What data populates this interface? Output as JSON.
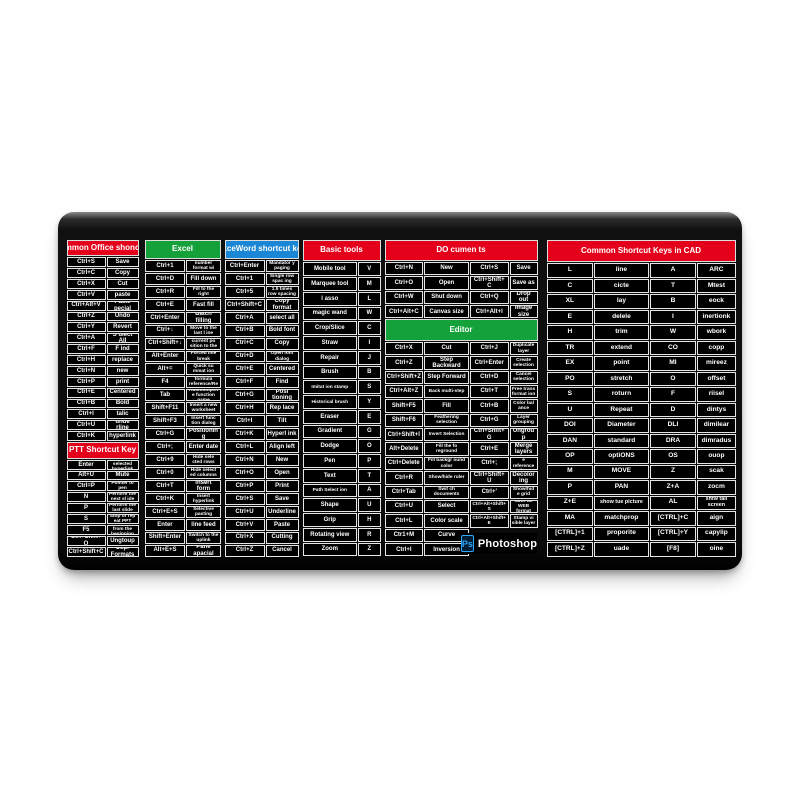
{
  "colors": {
    "red": "#e4001b",
    "green": "#14a139",
    "blue": "#1a87d6",
    "pad_surface": "#0a0a0a",
    "cell_border": "#e6e6e6",
    "text": "#ffffff",
    "ps_blue": "#31a8ff",
    "ps_bg": "#001d33"
  },
  "logo": {
    "icon_text": "Ps",
    "label": "Photoshop"
  },
  "pad": {
    "strips": [
      {
        "id": "office",
        "sections": [
          {
            "id": "office",
            "title": "Common Office shonculs",
            "color": "red",
            "layout": "kv",
            "rows": [
              [
                "Ctrl+S",
                "Save"
              ],
              [
                "Ctrl+C",
                "Copy"
              ],
              [
                "Ctrl+X",
                "Cut"
              ],
              [
                "Ctrl+V",
                "paste"
              ],
              [
                "Ctrl+Alt+V",
                "Paste pecial"
              ],
              [
                "Ctrl+Z",
                "Undo"
              ],
              [
                "Ctrl+Y",
                "Revert"
              ],
              [
                "Ctrl+A",
                "S ulect All"
              ],
              [
                "Ctrl+F",
                "F ind"
              ],
              [
                "Ctrl+H",
                "replace"
              ],
              [
                "Ctrl+N",
                "new"
              ],
              [
                "Ctrl+P",
                "print"
              ],
              [
                "Ctrl+E",
                "Centered"
              ],
              [
                "Ctrl+B",
                "Bold"
              ],
              [
                "Ctrl+I",
                "talic"
              ],
              [
                "Ctrl+U",
                "unde rline"
              ],
              [
                "Ctrl+K",
                "hyperlink"
              ]
            ]
          },
          {
            "id": "ppt",
            "title": "PTT Shortcut Key",
            "color": "red",
            "layout": "kv",
            "rows": [
              [
                "Enter",
                "Open selected hyperlink"
              ],
              [
                "Alt+U",
                "Mute"
              ],
              [
                "Ctrl=P",
                "Pointer to pen"
              ],
              [
                "N",
                "Perform the next sl ide"
              ],
              [
                "P",
                "Perform the last slide"
              ],
              [
                "S",
                "Stop or rep eat PPT"
              ],
              [
                "F5",
                "Run PPT from the beginning"
              ],
              [
                "Ctrl+Shift+Q",
                "Ungtoup"
              ],
              [
                "Ctrl+Shift+C",
                "Copr Formats"
              ]
            ]
          }
        ]
      },
      {
        "id": "excel",
        "sections": [
          {
            "id": "excel",
            "title": "Excel",
            "color": "green",
            "layout": "kv",
            "rows": [
              [
                "Ctrl+1",
                "Open the number format wi ndow"
              ],
              [
                "Ctrl+D",
                "Fill down"
              ],
              [
                "Ctrl+R",
                "Fill to the right"
              ],
              [
                "Ctrl+E",
                "Fast fill"
              ],
              [
                "Ctrl+Enter",
                "Batch filling"
              ],
              [
                "Ctrl+↓",
                "Move to the last l ine"
              ],
              [
                "Ctrl+Shift+↓",
                "Check the current po sition to the last l ine"
              ],
              [
                "Alt+Enter",
                "Forced line break"
              ],
              [
                "Alt+=",
                "Quick su mmat ion"
              ],
              [
                "F4",
                "Switch formula reference/Repeat"
              ],
              [
                "Tab",
                "Autocomplete function name"
              ],
              [
                "Shift+F11",
                "Insert a new worksheet"
              ],
              [
                "Shift+F3",
                "Insert func tion dialog"
              ],
              [
                "Ctrl+G",
                "Positioning"
              ],
              [
                "Ctrl+;",
                "Enter date"
              ],
              [
                "Ctrl+9",
                "Hide sele cted rows"
              ],
              [
                "Ctrl+0",
                "Hide select ed columns"
              ],
              [
                "Ctrl+T",
                "Insert form"
              ],
              [
                "Ctrl+K",
                "Insert hyperlink"
              ],
              [
                "Ctrl+E+S",
                "Selective pasting"
              ],
              [
                "Enter",
                "line feed"
              ],
              [
                "Shift+Enter",
                "Switch to the uplink"
              ],
              [
                "Alt+E+S",
                "Pane apacial"
              ]
            ]
          }
        ]
      },
      {
        "id": "word",
        "sections": [
          {
            "id": "word",
            "title": "ExceWord shortcut key",
            "color": "blue",
            "layout": "kv",
            "rows": [
              [
                "Ctrl+Enter",
                "Mandator y paging"
              ],
              [
                "Ctrl+1",
                "Single row spac ing"
              ],
              [
                "Ctrl+5",
                "1.5 times row spacing"
              ],
              [
                "Ctrl+Shift+C",
                "Copy format"
              ],
              [
                "Ctrl+A",
                "select all"
              ],
              [
                "Ctrl+B",
                "Bold font"
              ],
              [
                "Ctrl+C",
                "Copy"
              ],
              [
                "Ctrl+D",
                "Open font dialog"
              ],
              [
                "Ctrl+E",
                "Centered"
              ],
              [
                "Ctrl+F",
                "Find"
              ],
              [
                "Ctrl+G",
                "Posi tioning"
              ],
              [
                "Ctrl+H",
                "Rep lace"
              ],
              [
                "Ctrl+I",
                "Tilt"
              ],
              [
                "Ctrl+K",
                "Hyperl ink"
              ],
              [
                "Ctrl+L",
                "Align left"
              ],
              [
                "Ctrl+N",
                "New"
              ],
              [
                "Ctrl+O",
                "Open"
              ],
              [
                "Ctrl+P",
                "Print"
              ],
              [
                "Ctrl+S",
                "Save"
              ],
              [
                "Ctrl+U",
                "Underline"
              ],
              [
                "Ctrl+V",
                "Paste"
              ],
              [
                "Ctrl+X",
                "Cutting"
              ],
              [
                "Ctrl+Z",
                "Cancel"
              ]
            ]
          }
        ]
      },
      {
        "id": "basic",
        "sections": [
          {
            "id": "basic",
            "title": "Basic tools",
            "color": "red",
            "layout": "vk",
            "rows": [
              [
                "Mobile tool",
                "V"
              ],
              [
                "Marquee tool",
                "M"
              ],
              [
                "l asso",
                "L"
              ],
              [
                "magic wand",
                "W"
              ],
              [
                "Crop/Slice",
                "C"
              ],
              [
                "Straw",
                "I"
              ],
              [
                "Repair",
                "J"
              ],
              [
                "Brush",
                "B"
              ],
              [
                "Imitat ion stamp",
                "S"
              ],
              [
                "Historical brush",
                "Y"
              ],
              [
                "Eraser",
                "E"
              ],
              [
                "Gradient",
                "G"
              ],
              [
                "Dodge",
                "O"
              ],
              [
                "Pen",
                "P"
              ],
              [
                "Text",
                "T"
              ],
              [
                "Path Select ion",
                "A"
              ],
              [
                "Shape",
                "U"
              ],
              [
                "Grip",
                "H"
              ],
              [
                "Rotating view",
                "R"
              ],
              [
                "Zoom",
                "Z"
              ]
            ]
          }
        ]
      },
      {
        "id": "ps",
        "sections": [
          {
            "id": "documents",
            "title": "DO cumen ts",
            "color": "red",
            "layout": "kvkv",
            "rows": [
              [
                "Ctrl+N",
                "New",
                "Ctrl+S",
                "Save"
              ],
              [
                "Ctrl+O",
                "Open",
                "Ctrl+Shift+C",
                "Save as"
              ],
              [
                "Ctrl+W",
                "Shut down",
                "Ctrl+Q",
                "Drop out"
              ],
              [
                "Ctrl+Alt+C",
                "Canvas size",
                "Ctrl+Alt+I",
                "Image size"
              ]
            ]
          },
          {
            "id": "editor",
            "title": "Editor",
            "color": "green",
            "layout": "kvkv",
            "rows": [
              [
                "Ctrl+X",
                "Cut",
                "Ctrl+J",
                "Duplicate layer"
              ],
              [
                "Ctrl+Z",
                "Step Backward",
                "Ctrl+Enter",
                "Create selection"
              ],
              [
                "Ctrl+Shift+Z",
                "Step Forward",
                "Ctrl+D",
                "Cancel selection"
              ],
              [
                "Ctrl+Alt+Z",
                "Back multi-step",
                "Ctrl+T",
                "Free trans format ion"
              ],
              [
                "Shift+F5",
                "Fill",
                "Ctrl+B",
                "Color bal ance"
              ],
              [
                "Shift+F6",
                "Feathering selection",
                "Ctrl+G",
                "Layer grouping"
              ],
              [
                "Ctrl+Shift+I",
                "Invert Selection",
                "Ctrl+Shift+G",
                "Ungroup"
              ],
              [
                "Alt+Delete",
                "Fill the fo reground",
                "Ctrl+E",
                "Merge layers"
              ],
              [
                "Ctrl+Delete",
                "Fill backgr ound color",
                "Ctrl+;",
                "Show/hide reference line"
              ],
              [
                "Ctrl+R",
                "Show/hide ruler",
                "Ctrl+Shift+U",
                "Decoloring"
              ],
              [
                "Ctrl+Tab",
                "Swit ch documents",
                "Ctrl+'",
                "Show/hide grid"
              ],
              [
                "Ctrl+U",
                "Select",
                "Ctrl+Alt+Shift+S",
                "Save as WEB format"
              ],
              [
                "Ctrl+L",
                "Color scale",
                "Ctrl+Alt+Shift+E",
                "Stamp vi sible layer"
              ],
              [
                "Ctr1+M",
                "Curve",
                null,
                null
              ],
              [
                "Ctrl+I",
                "Inversion",
                null,
                null
              ]
            ]
          }
        ]
      },
      {
        "id": "cad",
        "sections": [
          {
            "id": "cad",
            "title": "Common Shortcut Keys in CAD",
            "color": "red",
            "layout": "kvkv",
            "rows": [
              [
                "L",
                "line",
                "A",
                "ARC"
              ],
              [
                "C",
                "cicte",
                "T",
                "Mtest"
              ],
              [
                "XL",
                "lay",
                "B",
                "eock"
              ],
              [
                "E",
                "delele",
                "I",
                "inertionk"
              ],
              [
                "H",
                "trim",
                "W",
                "wbork"
              ],
              [
                "TR",
                "extend",
                "CO",
                "copp"
              ],
              [
                "EX",
                "point",
                "MI",
                "mireez"
              ],
              [
                "PO",
                "stretch",
                "O",
                "offset"
              ],
              [
                "S",
                "roturn",
                "F",
                "riisel"
              ],
              [
                "U",
                "Repeat",
                "D",
                "dintys"
              ],
              [
                "DOI",
                "Diameter",
                "DLI",
                "dimilear"
              ],
              [
                "DAN",
                "standard",
                "DRA",
                "dimradus"
              ],
              [
                "OP",
                "optiONS",
                "OS",
                "ouop"
              ],
              [
                "M",
                "MOVE",
                "Z",
                "scak"
              ],
              [
                "P",
                "PAN",
                "Z+A",
                "zocm"
              ],
              [
                "Z+E",
                "show tue picture",
                "AL",
                "shtw tall screen"
              ],
              [
                "MA",
                "matchprop",
                "[CTRL]+C",
                "aign"
              ],
              [
                "[CTRL]+1",
                "proporite",
                "[CTRL]+Y",
                "capylip"
              ],
              [
                "[CTRL]+Z",
                "uade",
                "[F8]",
                "oine"
              ]
            ]
          }
        ]
      }
    ]
  }
}
